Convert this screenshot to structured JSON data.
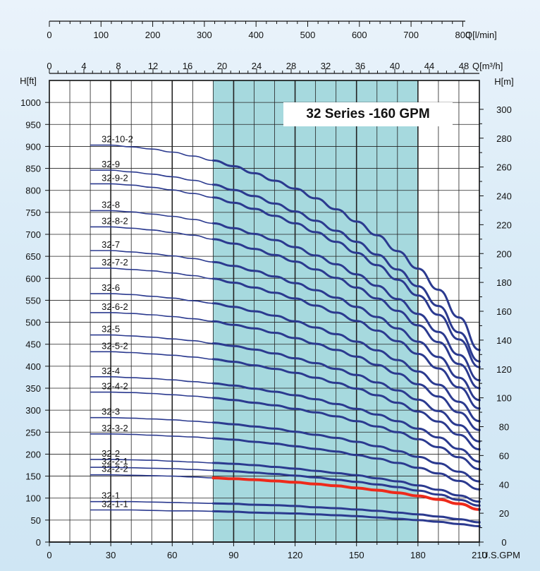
{
  "chart_data": {
    "type": "line",
    "title": "32 Series -160 GPM",
    "x_gpm": [
      20,
      30,
      40,
      50,
      60,
      70,
      80,
      90,
      100,
      110,
      120,
      130,
      140,
      150,
      160,
      170,
      180,
      190,
      200,
      210
    ],
    "xlabel": "U.S.GPM",
    "xlim": [
      0,
      210
    ],
    "x_ticks": [
      "0",
      "30",
      "60",
      "90",
      "120",
      "150",
      "180",
      "210"
    ],
    "ylabel_left": "H[ft]",
    "ylim_left": [
      0,
      1050
    ],
    "y_ticks_left": [
      "0",
      "50",
      "100",
      "150",
      "200",
      "250",
      "300",
      "350",
      "400",
      "450",
      "500",
      "550",
      "600",
      "650",
      "700",
      "750",
      "800",
      "850",
      "900",
      "950",
      "1000"
    ],
    "ylabel_right": "H[m]",
    "ylim_right": [
      0,
      320
    ],
    "y_ticks_right": [
      "0",
      "20",
      "40",
      "60",
      "80",
      "100",
      "120",
      "140",
      "160",
      "180",
      "200",
      "220",
      "240",
      "260",
      "280",
      "300"
    ],
    "top_axis_lmin": {
      "label": "Q[l/min]",
      "ticks": [
        "0",
        "100",
        "200",
        "300",
        "400",
        "500",
        "600",
        "700",
        "800"
      ]
    },
    "top_axis_m3h": {
      "label": "Q[m³/h]",
      "ticks": [
        "0",
        "4",
        "8",
        "12",
        "16",
        "20",
        "24",
        "28",
        "32",
        "36",
        "40",
        "44",
        "48"
      ]
    },
    "shaded_range_gpm": [
      80,
      180
    ],
    "grid": true,
    "highlight_color": "#ee2a1b",
    "curve_color": "#2b3a8f",
    "shade_color": "#a6d9de",
    "series": [
      {
        "name": "32-10-2",
        "values": [
          903,
          903,
          899,
          894,
          887,
          878,
          868,
          855,
          839,
          822,
          804,
          782,
          757,
          729,
          698,
          662,
          622,
          574,
          511,
          437
        ]
      },
      {
        "name": "32-9",
        "values": [
          846,
          846,
          842,
          837,
          831,
          823,
          813,
          801,
          787,
          770,
          752,
          731,
          708,
          683,
          654,
          620,
          582,
          537,
          477,
          411
        ]
      },
      {
        "name": "32-9-2",
        "values": [
          815,
          815,
          812,
          807,
          801,
          793,
          784,
          772,
          758,
          742,
          725,
          705,
          683,
          658,
          630,
          597,
          561,
          517,
          461,
          398
        ]
      },
      {
        "name": "32-8",
        "values": [
          754,
          754,
          751,
          746,
          741,
          734,
          725,
          714,
          701,
          687,
          671,
          652,
          632,
          609,
          583,
          553,
          519,
          478,
          426,
          368
        ]
      },
      {
        "name": "32-8-2",
        "values": [
          717,
          717,
          714,
          710,
          704,
          698,
          689,
          679,
          667,
          653,
          638,
          620,
          601,
          579,
          554,
          526,
          493,
          455,
          405,
          350
        ]
      },
      {
        "name": "32-7",
        "values": [
          663,
          663,
          660,
          656,
          651,
          645,
          637,
          628,
          617,
          604,
          589,
          573,
          556,
          535,
          512,
          486,
          456,
          421,
          374,
          323
        ]
      },
      {
        "name": "32-7-2",
        "values": [
          623,
          623,
          620,
          617,
          612,
          606,
          599,
          590,
          579,
          567,
          554,
          538,
          522,
          503,
          481,
          457,
          428,
          395,
          352,
          304
        ]
      },
      {
        "name": "32-6",
        "values": [
          565,
          565,
          563,
          559,
          555,
          549,
          543,
          535,
          525,
          515,
          502,
          488,
          473,
          456,
          436,
          414,
          388,
          358,
          319,
          275
        ]
      },
      {
        "name": "32-6-2",
        "values": [
          522,
          522,
          520,
          517,
          513,
          508,
          502,
          494,
          486,
          476,
          464,
          451,
          437,
          422,
          403,
          383,
          359,
          331,
          295,
          255
        ]
      },
      {
        "name": "32-5",
        "values": [
          471,
          471,
          469,
          466,
          462,
          458,
          452,
          446,
          438,
          429,
          418,
          407,
          394,
          380,
          363,
          345,
          324,
          298,
          266,
          229
        ]
      },
      {
        "name": "32-5-2",
        "values": [
          433,
          433,
          431,
          428,
          425,
          421,
          416,
          410,
          402,
          394,
          385,
          374,
          362,
          349,
          334,
          317,
          297,
          274,
          244,
          211
        ]
      },
      {
        "name": "32-4",
        "values": [
          376,
          376,
          374,
          372,
          369,
          365,
          361,
          356,
          349,
          342,
          334,
          325,
          314,
          303,
          290,
          275,
          258,
          238,
          212,
          183
        ]
      },
      {
        "name": "32-4-2",
        "values": [
          341,
          341,
          340,
          338,
          335,
          332,
          328,
          323,
          317,
          311,
          303,
          295,
          286,
          275,
          263,
          250,
          234,
          216,
          193,
          166
        ]
      },
      {
        "name": "32-3",
        "values": [
          283,
          283,
          282,
          280,
          278,
          275,
          272,
          268,
          263,
          258,
          251,
          244,
          237,
          228,
          218,
          207,
          194,
          179,
          160,
          138
        ]
      },
      {
        "name": "32-3-2",
        "values": [
          246,
          246,
          245,
          243,
          241,
          239,
          236,
          233,
          228,
          224,
          218,
          212,
          206,
          198,
          190,
          180,
          169,
          156,
          139,
          120
        ]
      },
      {
        "name": "32-2",
        "values": [
          188,
          188,
          187,
          186,
          184,
          182,
          180,
          178,
          175,
          171,
          167,
          162,
          157,
          152,
          145,
          138,
          129,
          119,
          106,
          92
        ]
      },
      {
        "name": "32-2-1",
        "values": [
          170,
          170,
          169,
          168,
          167,
          165,
          163,
          161,
          158,
          155,
          151,
          147,
          142,
          137,
          131,
          125,
          117,
          108,
          96,
          83
        ]
      },
      {
        "name": "32-2-2",
        "values": [
          153,
          153,
          152,
          151,
          150,
          148,
          146,
          144,
          142,
          139,
          136,
          132,
          128,
          123,
          118,
          112,
          105,
          97,
          87,
          74
        ],
        "highlight": true
      },
      {
        "name": "32-1",
        "values": [
          92,
          92,
          92,
          91,
          90,
          89,
          88,
          87,
          85,
          84,
          82,
          79,
          77,
          74,
          71,
          67,
          63,
          58,
          52,
          45
        ]
      },
      {
        "name": "32-1-1",
        "values": [
          73,
          73,
          73,
          72,
          71,
          71,
          70,
          69,
          67,
          66,
          65,
          63,
          61,
          59,
          56,
          53,
          50,
          46,
          41,
          36
        ]
      }
    ]
  }
}
